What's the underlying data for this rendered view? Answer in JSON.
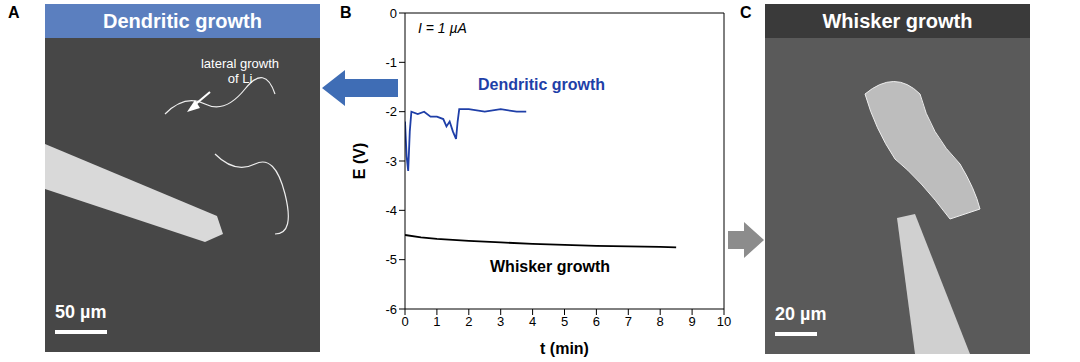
{
  "panel_labels": [
    "A",
    "B",
    "C"
  ],
  "chart_data": {
    "type": "line",
    "xlabel": "t (min)",
    "ylabel": "E (V)",
    "annotations": [
      "I = 1 µA"
    ],
    "xlim": [
      0,
      10
    ],
    "xticks": [
      0,
      1,
      2,
      3,
      4,
      5,
      6,
      7,
      8,
      9,
      10
    ],
    "ylim": [
      -6,
      0
    ],
    "yticks": [
      -6,
      -5,
      -4,
      -3,
      -2,
      -1,
      0
    ],
    "series": [
      {
        "name": "Dendritic growth",
        "color": "#1f3fa8",
        "x": [
          0,
          0.05,
          0.1,
          0.15,
          0.2,
          0.4,
          0.6,
          0.8,
          1.0,
          1.2,
          1.3,
          1.4,
          1.5,
          1.6,
          1.65,
          1.7,
          2.0,
          2.5,
          3.0,
          3.5,
          3.8
        ],
        "values": [
          -2.2,
          -2.9,
          -3.2,
          -2.4,
          -2.0,
          -2.05,
          -2.0,
          -2.1,
          -2.1,
          -2.15,
          -2.3,
          -2.2,
          -2.4,
          -2.55,
          -2.2,
          -1.95,
          -1.95,
          -2.0,
          -1.95,
          -2.0,
          -2.0
        ]
      },
      {
        "name": "Whisker growth",
        "color": "#000000",
        "x": [
          0,
          0.5,
          1,
          2,
          3,
          4,
          5,
          6,
          7,
          8,
          8.5
        ],
        "values": [
          -4.5,
          -4.55,
          -4.58,
          -4.62,
          -4.65,
          -4.68,
          -4.7,
          -4.72,
          -4.73,
          -4.74,
          -4.75
        ]
      }
    ]
  },
  "images": [
    {
      "title": "Dendritic growth",
      "annotation": "lateral growth of Li",
      "scale_bar": "50 µm"
    },
    {
      "title": "Whisker growth",
      "scale_bar": "20 µm"
    }
  ]
}
